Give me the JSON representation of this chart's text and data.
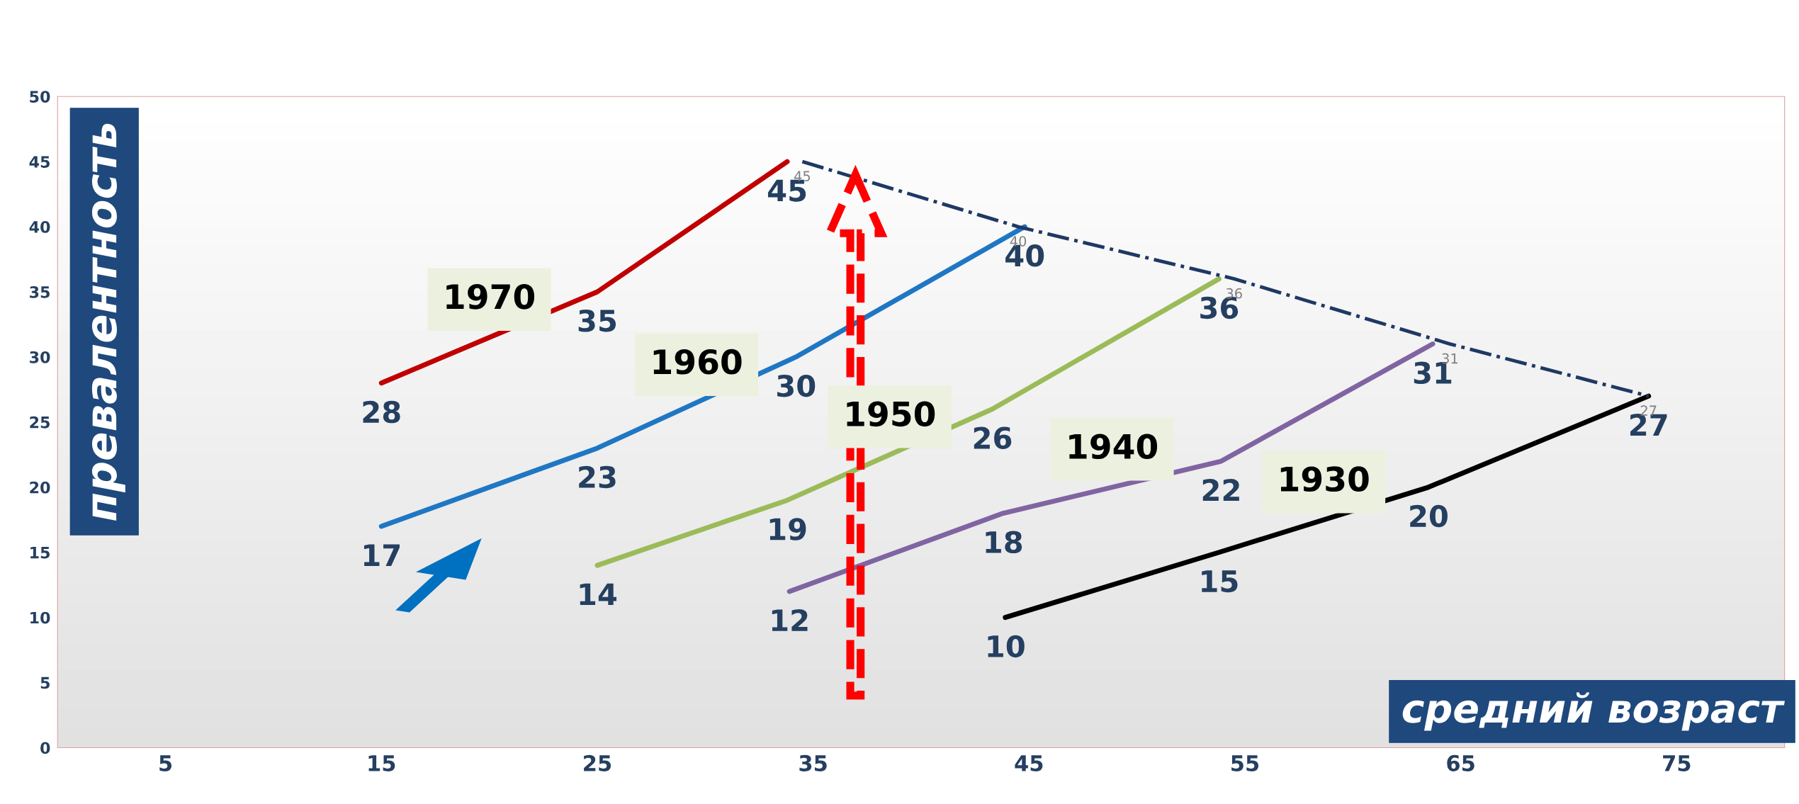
{
  "chart_data": {
    "type": "line",
    "xlabel": "средний возраст",
    "ylabel": "превалентность",
    "xlim": [
      0,
      80
    ],
    "ylim": [
      0,
      50
    ],
    "xticks": [
      5,
      15,
      25,
      35,
      45,
      55,
      65,
      75
    ],
    "yticks": [
      0,
      5,
      10,
      15,
      20,
      25,
      30,
      35,
      40,
      45,
      50
    ],
    "grid": false,
    "legend": false,
    "marker": "none",
    "series": [
      {
        "name": "1970",
        "color": "#c00000",
        "x": [
          15,
          25,
          33.8
        ],
        "values": [
          28,
          35,
          45
        ],
        "value_labels": [
          "28",
          "35",
          "45"
        ]
      },
      {
        "name": "1960",
        "color": "#1f77c4",
        "x": [
          15,
          25,
          34.2,
          44.8
        ],
        "values": [
          17,
          23,
          30,
          40
        ],
        "value_labels": [
          "17",
          "23",
          "30",
          "40"
        ]
      },
      {
        "name": "1950",
        "color": "#9bbb59",
        "x": [
          25,
          33.8,
          43.3,
          53.8
        ],
        "values": [
          14,
          19,
          26,
          36
        ],
        "value_labels": [
          "14",
          "19",
          "26",
          "36"
        ]
      },
      {
        "name": "1940",
        "color": "#8064a2",
        "x": [
          33.9,
          43.8,
          53.9,
          63.7
        ],
        "values": [
          12,
          18,
          22,
          31
        ],
        "value_labels": [
          "12",
          "18",
          "22",
          "31"
        ]
      },
      {
        "name": "1930",
        "color": "#000000",
        "x": [
          43.9,
          53.8,
          63.5,
          73.7
        ],
        "values": [
          10,
          15,
          20,
          27
        ],
        "value_labels": [
          "10",
          "15",
          "20",
          "27"
        ]
      },
      {
        "color": "#1f3864",
        "x": [
          34.5,
          44.5,
          54.5,
          64.5,
          73.7
        ],
        "values": [
          45,
          40,
          36,
          31,
          27
        ],
        "line_style": "dashdot",
        "value_labels": [
          "45",
          "40",
          "36",
          "31",
          "27"
        ]
      }
    ]
  }
}
